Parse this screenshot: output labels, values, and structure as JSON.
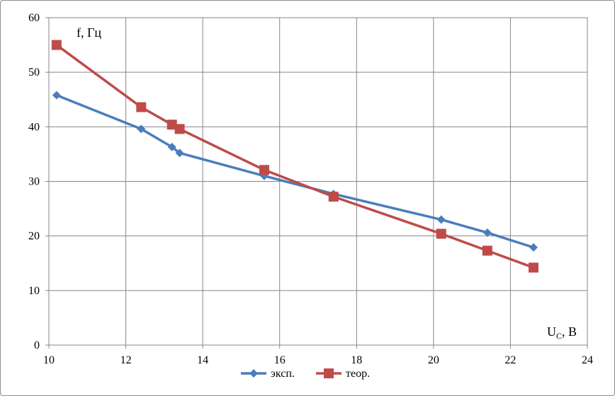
{
  "chart_data": {
    "type": "line",
    "ylabel": "f, Гц",
    "xlabel_main": "U",
    "xlabel_sub": "C",
    "xlabel_unit": ", В",
    "xlim": [
      10,
      24
    ],
    "ylim": [
      0,
      60
    ],
    "xticks": [
      10,
      12,
      14,
      16,
      18,
      20,
      22,
      24
    ],
    "yticks": [
      0,
      10,
      20,
      30,
      40,
      50,
      60
    ],
    "grid": true,
    "legend_position": "bottom",
    "series": [
      {
        "name": "эксп.",
        "color": "#4a7ebb",
        "marker": "diamond",
        "x": [
          10.2,
          12.4,
          13.2,
          13.4,
          15.6,
          17.4,
          20.2,
          21.4,
          22.6
        ],
        "y": [
          45.8,
          39.6,
          36.3,
          35.2,
          31.0,
          27.7,
          23.0,
          20.6,
          17.9
        ]
      },
      {
        "name": "теор.",
        "color": "#be4b48",
        "marker": "square",
        "x": [
          10.2,
          12.4,
          13.2,
          13.4,
          15.6,
          17.4,
          20.2,
          21.4,
          22.6
        ],
        "y": [
          55.0,
          43.6,
          40.4,
          39.6,
          32.1,
          27.2,
          20.4,
          17.3,
          14.2
        ]
      }
    ]
  }
}
